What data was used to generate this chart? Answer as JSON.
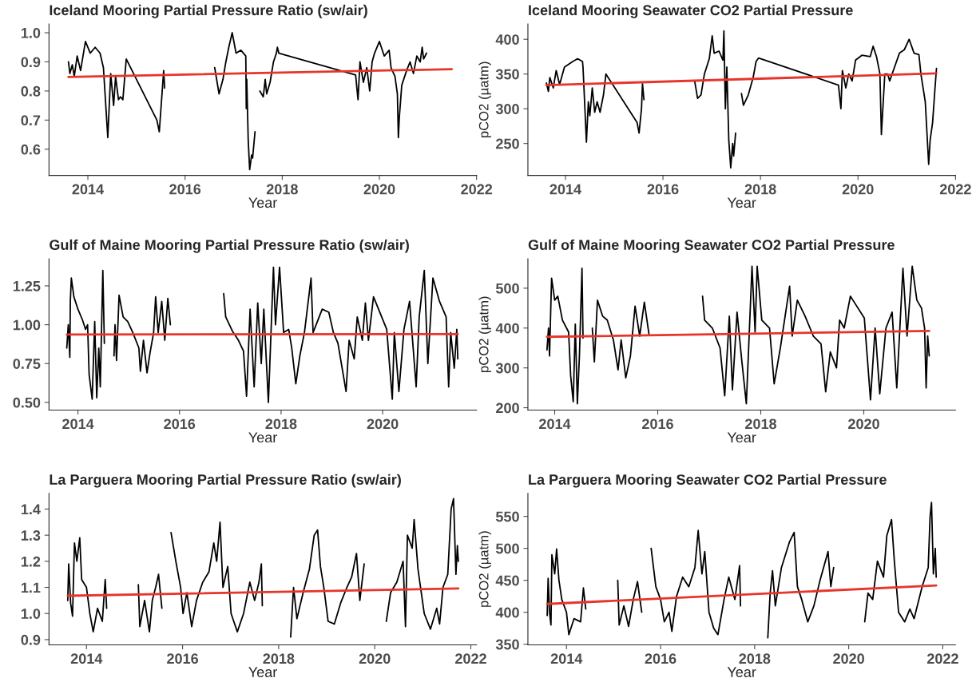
{
  "chart_data": [
    {
      "type": "line",
      "title": "Iceland Mooring Partial Pressure Ratio (sw/air)",
      "xlabel": "Year",
      "xlim": [
        2013.2,
        2022.0
      ],
      "ylim": [
        0.51,
        1.03
      ],
      "xticks": [
        2014,
        2016,
        2018,
        2020,
        2022
      ],
      "yticks": [
        0.6,
        0.7,
        0.8,
        0.9,
        {
          "value": 1,
          "label": "1.0"
        }
      ],
      "grid": false,
      "series": [
        {
          "color": "#000000",
          "x": [
            2013.6,
            2013.63,
            2013.68,
            2013.72,
            2013.78,
            2013.85,
            2013.95,
            2014.05,
            2014.15,
            2014.25,
            2014.32,
            2014.41,
            2014.47,
            2014.53,
            2014.57,
            2014.63,
            2014.67,
            2014.72,
            2014.79,
            2015.42,
            2015.47,
            2015.56,
            2015.58,
            2016.1,
            2016.61,
            2016.66,
            2016.7,
            2016.78,
            2016.84,
            2016.9,
            2016.97,
            2017.05,
            2017.15,
            2017.25,
            2017.26,
            2017.27,
            2017.3,
            2017.33,
            2017.37,
            2017.39,
            2017.44,
            2017.49,
            2017.54,
            2017.61,
            2017.65,
            2017.68,
            2017.75,
            2017.82,
            2017.88,
            2017.9,
            2017.93,
            2019.51,
            2019.56,
            2019.6,
            2019.67,
            2019.74,
            2019.8,
            2019.85,
            2019.9,
            2020.0,
            2020.1,
            2020.2,
            2020.24,
            2020.32,
            2020.37,
            2020.39,
            2020.41,
            2020.46,
            2020.56,
            2020.63,
            2020.7,
            2020.77,
            2020.84,
            2020.88,
            2020.91,
            2020.97
          ],
          "values": [
            0.9,
            0.86,
            0.89,
            0.85,
            0.92,
            0.87,
            0.97,
            0.93,
            0.95,
            0.93,
            0.88,
            0.64,
            0.86,
            0.75,
            0.85,
            0.77,
            0.78,
            0.77,
            0.91,
            0.7,
            0.66,
            0.87,
            0.81,
            null,
            0.88,
            0.83,
            0.79,
            0.84,
            0.9,
            0.95,
            1.0,
            0.93,
            0.94,
            0.92,
            0.74,
            0.84,
            0.63,
            0.53,
            0.58,
            0.57,
            0.66,
            null,
            0.8,
            0.78,
            0.84,
            0.79,
            0.83,
            0.9,
            0.93,
            0.95,
            0.93,
            0.855,
            0.77,
            0.9,
            0.83,
            0.88,
            0.8,
            0.9,
            0.93,
            0.97,
            0.92,
            0.94,
            0.88,
            0.85,
            0.79,
            0.64,
            0.71,
            0.82,
            0.87,
            0.9,
            0.86,
            0.92,
            0.9,
            0.95,
            0.91,
            0.93
          ]
        },
        {
          "type": "line",
          "color": "#e8342a",
          "x": [
            2013.6,
            2021.49
          ],
          "values": [
            0.848,
            0.875
          ]
        }
      ]
    },
    {
      "type": "line",
      "title": "Iceland Mooring Seawater CO2 Partial Pressure",
      "xlabel": "Year",
      "ylabel": "pCO2 (µatm)",
      "xlim": [
        2013.23,
        2022.0
      ],
      "ylim": [
        204,
        422
      ],
      "xticks": [
        2014,
        2016,
        2018,
        2020,
        2022
      ],
      "yticks": [
        250,
        300,
        350,
        400
      ],
      "grid": false,
      "series": [
        {
          "color": "#000000",
          "x": [
            2013.61,
            2013.65,
            2013.68,
            2013.75,
            2013.81,
            2013.88,
            2013.98,
            2014.15,
            2014.25,
            2014.35,
            2014.36,
            2014.38,
            2014.43,
            2014.47,
            2014.5,
            2014.55,
            2014.6,
            2014.65,
            2014.71,
            2014.78,
            2014.83,
            2015.47,
            2015.51,
            2015.56,
            2015.58,
            2015.61,
            2016.1,
            2016.65,
            2016.71,
            2016.78,
            2016.85,
            2016.95,
            2017.01,
            2017.05,
            2017.15,
            2017.23,
            2017.25,
            2017.28,
            2017.31,
            2017.35,
            2017.39,
            2017.43,
            2017.45,
            2017.49,
            2017.55,
            2017.61,
            2017.65,
            2017.75,
            2017.85,
            2017.91,
            2017.96,
            2019.6,
            2019.65,
            2019.68,
            2019.75,
            2019.81,
            2019.88,
            2019.95,
            2020.08,
            2020.25,
            2020.31,
            2020.38,
            2020.45,
            2020.48,
            2020.55,
            2020.61,
            2020.65,
            2020.75,
            2020.85,
            2020.95,
            2021.05,
            2021.15,
            2021.25,
            2021.29,
            2021.38,
            2021.45,
            2021.48,
            2021.53,
            2021.58,
            2021.61
          ],
          "values": [
            337,
            325,
            345,
            330,
            355,
            335,
            360,
            368,
            372,
            368,
            360,
            330,
            252,
            310,
            290,
            330,
            295,
            310,
            295,
            320,
            350,
            280,
            265,
            300,
            336,
            313,
            null,
            340,
            315,
            320,
            350,
            372,
            405,
            380,
            383,
            370,
            412,
            300,
            360,
            255,
            215,
            250,
            232,
            265,
            null,
            322,
            305,
            320,
            345,
            368,
            373,
            334,
            300,
            355,
            330,
            350,
            340,
            370,
            377,
            375,
            390,
            375,
            350,
            263,
            350,
            350,
            340,
            360,
            380,
            385,
            400,
            380,
            378,
            350,
            310,
            220,
            255,
            280,
            330,
            358
          ]
        },
        {
          "type": "line",
          "color": "#e8342a",
          "x": [
            2013.61,
            2021.61
          ],
          "values": [
            334,
            351
          ]
        }
      ]
    },
    {
      "type": "line",
      "title": "Gulf of Maine Mooring Partial Pressure Ratio (sw/air)",
      "xlabel": "Year",
      "xlim": [
        2013.43,
        2021.85
      ],
      "ylim": [
        0.45,
        1.425
      ],
      "xticks": [
        2014,
        2016,
        2018,
        2020
      ],
      "yticks": [
        {
          "value": 0.5,
          "label": "0.50"
        },
        {
          "value": 0.75,
          "label": "0.75"
        },
        {
          "value": 1.0,
          "label": "1.00"
        },
        {
          "value": 1.25,
          "label": "1.25"
        }
      ],
      "grid": false,
      "series": [
        {
          "color": "#000000",
          "x": [
            2013.78,
            2013.81,
            2013.84,
            2013.85,
            2013.87,
            2013.92,
            2014.0,
            2014.09,
            2014.15,
            2014.19,
            2014.22,
            2014.28,
            2014.33,
            2014.37,
            2014.41,
            2014.44,
            2014.49,
            2014.52,
            2014.6,
            2014.71,
            2014.73,
            2014.76,
            2014.81,
            2014.89,
            2014.98,
            2015.08,
            2015.2,
            2015.23,
            2015.29,
            2015.36,
            2015.42,
            2015.49,
            2015.53,
            2015.58,
            2015.65,
            2015.71,
            2015.77,
            2015.82,
            2016.3,
            2016.87,
            2016.91,
            2017.04,
            2017.16,
            2017.26,
            2017.32,
            2017.39,
            2017.47,
            2017.54,
            2017.61,
            2017.66,
            2017.75,
            2017.85,
            2017.89,
            2017.97,
            2018.05,
            2018.15,
            2018.21,
            2018.29,
            2018.37,
            2018.46,
            2018.59,
            2018.63,
            2018.81,
            2018.94,
            2019.03,
            2019.12,
            2019.28,
            2019.34,
            2019.44,
            2019.5,
            2019.6,
            2019.66,
            2019.72,
            2019.82,
            2020.08,
            2020.19,
            2020.23,
            2020.32,
            2020.42,
            2020.53,
            2020.66,
            2020.72,
            2020.82,
            2020.89,
            2020.99,
            2021.12,
            2021.25,
            2021.3,
            2021.34,
            2021.41,
            2021.46,
            2021.48
          ],
          "values": [
            0.85,
            1.0,
            0.79,
            1.15,
            1.3,
            1.18,
            1.1,
            1.03,
            0.97,
            1.0,
            0.68,
            0.52,
            1.02,
            0.53,
            0.85,
            0.6,
            1.35,
            0.88,
            null,
            0.8,
            1.0,
            0.77,
            1.19,
            1.05,
            1.02,
            0.95,
            0.85,
            0.7,
            0.9,
            0.69,
            0.82,
            0.95,
            1.18,
            0.95,
            1.15,
            0.9,
            1.17,
            1.0,
            null,
            1.2,
            1.05,
            0.96,
            0.9,
            0.83,
            0.54,
            1.1,
            0.6,
            1.14,
            0.75,
            1.1,
            0.5,
            1.37,
            1.0,
            1.37,
            0.95,
            0.97,
            0.85,
            0.62,
            0.8,
            0.95,
            1.3,
            0.95,
            1.1,
            1.08,
            0.95,
            0.88,
            0.57,
            0.9,
            0.78,
            1.05,
            0.9,
            1.14,
            0.9,
            1.18,
            0.97,
            0.52,
            0.95,
            0.57,
            0.97,
            1.15,
            0.6,
            1.05,
            1.35,
            0.75,
            1.3,
            1.15,
            1.05,
            0.6,
            0.95,
            0.72,
            0.97,
            0.78
          ]
        },
        {
          "type": "line",
          "color": "#e8342a",
          "x": [
            2013.78,
            2021.48
          ],
          "values": [
            0.937,
            0.94
          ]
        }
      ]
    },
    {
      "type": "line",
      "title": "Gulf of Maine Mooring Seawater CO2 Partial Pressure",
      "xlabel": "Year",
      "ylabel": "pCO2 (µatm)",
      "xlim": [
        2013.48,
        2021.78
      ],
      "ylim": [
        194,
        574
      ],
      "xticks": [
        2014,
        2016,
        2018,
        2020
      ],
      "yticks": [
        200,
        300,
        400,
        500
      ],
      "grid": false,
      "series": [
        {
          "color": "#000000",
          "x": [
            2013.85,
            2013.88,
            2013.9,
            2013.93,
            2013.94,
            2014.0,
            2014.06,
            2014.15,
            2014.27,
            2014.31,
            2014.36,
            2014.4,
            2014.44,
            2014.48,
            2014.53,
            2014.55,
            2014.64,
            2014.73,
            2014.77,
            2014.83,
            2014.93,
            2015.02,
            2015.14,
            2015.23,
            2015.29,
            2015.38,
            2015.47,
            2015.56,
            2015.65,
            2015.74,
            2015.83,
            2016.3,
            2016.87,
            2016.91,
            2017.06,
            2017.21,
            2017.3,
            2017.39,
            2017.45,
            2017.54,
            2017.63,
            2017.72,
            2017.83,
            2017.89,
            2017.93,
            2018.02,
            2018.17,
            2018.26,
            2018.38,
            2018.56,
            2018.61,
            2018.71,
            2018.86,
            2019.02,
            2019.17,
            2019.26,
            2019.35,
            2019.47,
            2019.53,
            2019.62,
            2019.74,
            2020.01,
            2020.13,
            2020.22,
            2020.31,
            2020.43,
            2020.55,
            2020.64,
            2020.76,
            2020.84,
            2020.94,
            2021.03,
            2021.12,
            2021.18,
            2021.21,
            2021.24,
            2021.27
          ],
          "values": [
            345,
            400,
            330,
            480,
            525,
            470,
            480,
            420,
            390,
            280,
            215,
            410,
            210,
            330,
            550,
            375,
            null,
            400,
            315,
            470,
            430,
            420,
            370,
            295,
            370,
            275,
            330,
            455,
            380,
            465,
            385,
            null,
            480,
            420,
            400,
            350,
            230,
            430,
            245,
            440,
            320,
            210,
            555,
            390,
            555,
            420,
            400,
            260,
            350,
            505,
            380,
            470,
            430,
            380,
            360,
            240,
            340,
            300,
            420,
            400,
            480,
            425,
            220,
            400,
            235,
            400,
            440,
            250,
            550,
            380,
            555,
            470,
            450,
            400,
            250,
            380,
            330
          ]
        },
        {
          "type": "line",
          "color": "#e8342a",
          "x": [
            2013.85,
            2021.27
          ],
          "values": [
            378,
            393
          ]
        }
      ]
    },
    {
      "type": "line",
      "title": "La Parguera Mooring Partial Pressure Ratio (sw/air)",
      "xlabel": "Year",
      "xlim": [
        2013.22,
        2022.12
      ],
      "ylim": [
        0.88,
        1.46
      ],
      "xticks": [
        2014,
        2016,
        2018,
        2020,
        2022
      ],
      "yticks": [
        0.9,
        {
          "value": 1,
          "label": "1.0"
        },
        1.1,
        1.2,
        1.3,
        1.4
      ],
      "grid": false,
      "series": [
        {
          "color": "#000000",
          "x": [
            2013.61,
            2013.63,
            2013.67,
            2013.71,
            2013.75,
            2013.8,
            2013.86,
            2013.9,
            2014.0,
            2014.07,
            2014.14,
            2014.23,
            2014.33,
            2014.39,
            2014.42,
            2014.75,
            2015.08,
            2015.11,
            2015.21,
            2015.31,
            2015.37,
            2015.44,
            2015.5,
            2015.57,
            2015.66,
            2015.76,
            2015.86,
            2015.96,
            2016.01,
            2016.09,
            2016.19,
            2016.29,
            2016.42,
            2016.55,
            2016.65,
            2016.71,
            2016.78,
            2016.84,
            2016.94,
            2017.01,
            2017.14,
            2017.27,
            2017.4,
            2017.5,
            2017.59,
            2017.64,
            2017.66,
            2017.95,
            2018.25,
            2018.31,
            2018.38,
            2018.51,
            2018.64,
            2018.74,
            2018.81,
            2018.87,
            2018.94,
            2019.03,
            2019.16,
            2019.29,
            2019.42,
            2019.52,
            2019.62,
            2019.69,
            2019.78,
            2020.0,
            2020.24,
            2020.33,
            2020.46,
            2020.59,
            2020.64,
            2020.68,
            2020.78,
            2020.82,
            2020.9,
            2021.03,
            2021.16,
            2021.29,
            2021.35,
            2021.42,
            2021.52,
            2021.59,
            2021.64,
            2021.69,
            2021.72,
            2021.74
          ],
          "values": [
            1.05,
            1.19,
            1.04,
            0.99,
            1.27,
            1.2,
            1.29,
            1.13,
            1.1,
            1.0,
            0.93,
            1.02,
            0.97,
            1.13,
            1.02,
            null,
            1.11,
            0.95,
            1.05,
            0.93,
            1.05,
            1.1,
            1.15,
            1.02,
            null,
            1.31,
            1.2,
            1.1,
            1.0,
            1.08,
            0.95,
            1.05,
            1.12,
            1.16,
            1.27,
            1.2,
            1.35,
            1.1,
            1.18,
            1.0,
            0.93,
            1.0,
            1.12,
            1.05,
            1.12,
            1.19,
            1.03,
            null,
            0.91,
            1.1,
            0.98,
            1.08,
            1.17,
            1.3,
            1.32,
            1.18,
            1.1,
            0.97,
            0.96,
            1.04,
            1.1,
            1.14,
            1.23,
            1.05,
            1.19,
            null,
            0.97,
            1.08,
            1.12,
            1.2,
            0.95,
            1.3,
            1.25,
            1.36,
            1.17,
            1.0,
            0.94,
            1.02,
            0.96,
            1.1,
            1.15,
            1.4,
            1.44,
            1.15,
            1.26,
            1.2
          ]
        },
        {
          "type": "line",
          "color": "#e8342a",
          "x": [
            2013.61,
            2021.74
          ],
          "values": [
            1.068,
            1.096
          ]
        }
      ]
    },
    {
      "type": "line",
      "title": "La Parguera Mooring Seawater CO2 Partial Pressure",
      "xlabel": "Year",
      "ylabel": "pCO2 (µatm)",
      "xlim": [
        2013.18,
        2022.27
      ],
      "ylim": [
        349,
        586
      ],
      "xticks": [
        2014,
        2016,
        2018,
        2020,
        2022
      ],
      "yticks": [
        350,
        400,
        450,
        500,
        550
      ],
      "grid": false,
      "series": [
        {
          "color": "#000000",
          "x": [
            2013.59,
            2013.61,
            2013.64,
            2013.67,
            2013.69,
            2013.75,
            2013.79,
            2013.84,
            2013.9,
            2014.0,
            2014.05,
            2014.16,
            2014.3,
            2014.36,
            2014.41,
            2014.75,
            2015.09,
            2015.12,
            2015.22,
            2015.32,
            2015.42,
            2015.51,
            2015.6,
            2015.7,
            2015.8,
            2015.9,
            2016.0,
            2016.08,
            2016.18,
            2016.24,
            2016.34,
            2016.47,
            2016.6,
            2016.73,
            2016.8,
            2016.88,
            2016.94,
            2017.03,
            2017.13,
            2017.22,
            2017.35,
            2017.45,
            2017.58,
            2017.68,
            2017.7,
            2018.0,
            2018.28,
            2018.33,
            2018.38,
            2018.44,
            2018.57,
            2018.74,
            2018.84,
            2018.91,
            2019.0,
            2019.13,
            2019.26,
            2019.39,
            2019.56,
            2019.62,
            2019.68,
            2020.0,
            2020.34,
            2020.41,
            2020.51,
            2020.61,
            2020.74,
            2020.81,
            2020.91,
            2020.97,
            2021.06,
            2021.19,
            2021.3,
            2021.39,
            2021.56,
            2021.69,
            2021.73,
            2021.76,
            2021.8,
            2021.84,
            2021.86
          ],
          "values": [
            395,
            453,
            400,
            380,
            490,
            460,
            499,
            450,
            420,
            400,
            365,
            390,
            385,
            438,
            405,
            null,
            450,
            380,
            410,
            378,
            420,
            448,
            400,
            null,
            500,
            440,
            420,
            385,
            400,
            370,
            425,
            455,
            440,
            470,
            528,
            460,
            495,
            400,
            375,
            365,
            420,
            455,
            420,
            473,
            410,
            null,
            360,
            430,
            465,
            410,
            470,
            510,
            525,
            440,
            420,
            385,
            410,
            450,
            495,
            440,
            470,
            null,
            385,
            430,
            420,
            480,
            455,
            520,
            545,
            480,
            400,
            385,
            405,
            390,
            440,
            470,
            550,
            572,
            460,
            500,
            455
          ]
        },
        {
          "type": "line",
          "color": "#e8342a",
          "x": [
            2013.59,
            2021.86
          ],
          "values": [
            413,
            442
          ]
        }
      ]
    }
  ]
}
